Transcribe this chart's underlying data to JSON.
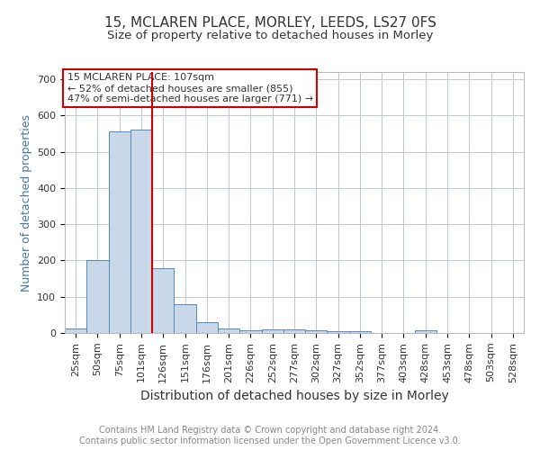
{
  "title1": "15, MCLAREN PLACE, MORLEY, LEEDS, LS27 0FS",
  "title2": "Size of property relative to detached houses in Morley",
  "xlabel": "Distribution of detached houses by size in Morley",
  "ylabel": "Number of detached properties",
  "footer1": "Contains HM Land Registry data © Crown copyright and database right 2024.",
  "footer2": "Contains public sector information licensed under the Open Government Licence v3.0.",
  "annotation_line1": "15 MCLAREN PLACE: 107sqm",
  "annotation_line2": "← 52% of detached houses are smaller (855)",
  "annotation_line3": "47% of semi-detached houses are larger (771) →",
  "bin_labels": [
    "25sqm",
    "50sqm",
    "75sqm",
    "101sqm",
    "126sqm",
    "151sqm",
    "176sqm",
    "201sqm",
    "226sqm",
    "252sqm",
    "277sqm",
    "302sqm",
    "327sqm",
    "352sqm",
    "377sqm",
    "403sqm",
    "428sqm",
    "453sqm",
    "478sqm",
    "503sqm",
    "528sqm"
  ],
  "bar_values": [
    12,
    202,
    557,
    560,
    178,
    80,
    30,
    13,
    8,
    10,
    10,
    8,
    5,
    5,
    0,
    0,
    7,
    0,
    0,
    0,
    0
  ],
  "bar_color": "#c8d8e8",
  "bar_edge_color": "#5588bb",
  "red_line_color": "#cc0000",
  "annotation_box_edge": "#cc0000",
  "background_color": "#ffffff",
  "grid_color": "#c0c8d8",
  "ylim": [
    0,
    720
  ],
  "yticks": [
    0,
    100,
    200,
    300,
    400,
    500,
    600,
    700
  ],
  "title1_fontsize": 11,
  "title2_fontsize": 9.5,
  "xlabel_fontsize": 10,
  "ylabel_fontsize": 9,
  "tick_fontsize": 8,
  "annotation_fontsize": 8,
  "footer_fontsize": 7
}
